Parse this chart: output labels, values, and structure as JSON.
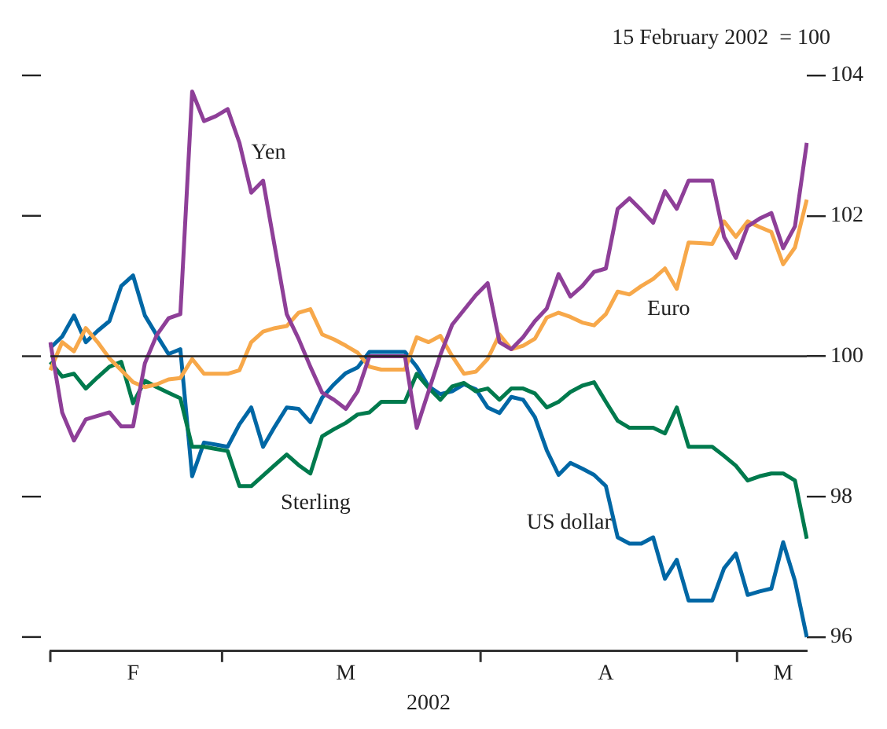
{
  "chart_data": {
    "type": "line",
    "xlabel": "2002",
    "annotations": [
      "15 February 2002  = 100"
    ],
    "categories": [
      null,
      null,
      null,
      null,
      null,
      null,
      null,
      "F",
      null,
      null,
      null,
      null,
      null,
      null,
      null,
      null,
      null,
      null,
      null,
      null,
      null,
      null,
      null,
      null,
      null,
      "M",
      null,
      null,
      null,
      null,
      null,
      null,
      null,
      null,
      null,
      null,
      null,
      null,
      null,
      null,
      null,
      null,
      null,
      null,
      null,
      null,
      null,
      "A",
      null,
      null,
      null,
      null,
      null,
      null,
      null,
      null,
      null,
      null,
      null,
      null,
      null,
      null,
      "M",
      null,
      null
    ],
    "ylim": [
      95.8,
      104
    ],
    "yticks": [
      96,
      98,
      100,
      102,
      104
    ],
    "ref_lines": [
      {
        "axis": "y",
        "value": 100,
        "color": "#222222"
      }
    ],
    "grid": false,
    "legend": false,
    "marker": "none",
    "line_style": "solid",
    "series": [
      {
        "name": "Yen",
        "color": "#8e3f98",
        "values": [
          100.2,
          99.2,
          98.8,
          99.1,
          99.15,
          99.2,
          99.0,
          99.0,
          99.9,
          100.3,
          100.54,
          100.6,
          103.77,
          103.35,
          103.42,
          103.52,
          103.04,
          102.33,
          102.5,
          101.55,
          100.6,
          100.25,
          99.85,
          99.48,
          99.38,
          99.25,
          99.5,
          100.0,
          100.0,
          100.0,
          100.0,
          98.98,
          99.5,
          100.02,
          100.45,
          100.66,
          100.87,
          101.04,
          100.2,
          100.1,
          100.27,
          100.5,
          100.68,
          101.17,
          100.85,
          101.0,
          101.2,
          101.25,
          102.1,
          102.25,
          102.08,
          101.9,
          102.35,
          102.1,
          102.5,
          102.5,
          102.5,
          101.7,
          101.4,
          101.85,
          101.96,
          102.04,
          101.54,
          101.85,
          103.04
        ]
      },
      {
        "name": "Euro",
        "color": "#f7a84a",
        "values": [
          99.8,
          100.2,
          100.07,
          100.4,
          100.2,
          99.97,
          99.8,
          99.63,
          99.56,
          99.6,
          99.67,
          99.69,
          99.96,
          99.75,
          99.75,
          99.75,
          99.8,
          100.2,
          100.35,
          100.4,
          100.43,
          100.62,
          100.67,
          100.31,
          100.24,
          100.15,
          100.05,
          99.85,
          99.81,
          99.81,
          99.81,
          100.27,
          100.2,
          100.29,
          100.0,
          99.75,
          99.78,
          99.96,
          100.31,
          100.1,
          100.15,
          100.25,
          100.55,
          100.62,
          100.56,
          100.48,
          100.44,
          100.6,
          100.92,
          100.88,
          101.0,
          101.1,
          101.25,
          100.96,
          101.62,
          101.61,
          101.6,
          101.92,
          101.7,
          101.92,
          101.84,
          101.77,
          101.31,
          101.55,
          102.23
        ]
      },
      {
        "name": "Sterling",
        "color": "#007a4d",
        "values": [
          99.92,
          99.71,
          99.75,
          99.54,
          99.7,
          99.85,
          99.92,
          99.33,
          99.65,
          99.56,
          99.48,
          99.4,
          98.71,
          98.71,
          98.68,
          98.65,
          98.15,
          98.15,
          98.3,
          98.45,
          98.6,
          98.45,
          98.33,
          98.86,
          98.96,
          99.05,
          99.17,
          99.2,
          99.35,
          99.35,
          99.35,
          99.75,
          99.55,
          99.38,
          99.57,
          99.62,
          99.5,
          99.54,
          99.38,
          99.54,
          99.54,
          99.47,
          99.27,
          99.35,
          99.49,
          99.58,
          99.63,
          99.35,
          99.08,
          98.98,
          98.98,
          98.98,
          98.9,
          99.27,
          98.71,
          98.71,
          98.71,
          98.58,
          98.44,
          98.23,
          98.29,
          98.33,
          98.33,
          98.23,
          97.4
        ]
      },
      {
        "name": "US dollar",
        "color": "#0067a5",
        "values": [
          100.12,
          100.28,
          100.58,
          100.2,
          100.36,
          100.5,
          101.0,
          101.15,
          100.58,
          100.3,
          100.03,
          100.1,
          98.29,
          98.77,
          98.74,
          98.71,
          99.03,
          99.27,
          98.71,
          99.0,
          99.27,
          99.25,
          99.06,
          99.41,
          99.6,
          99.76,
          99.84,
          100.06,
          100.06,
          100.06,
          100.06,
          99.85,
          99.57,
          99.46,
          99.5,
          99.6,
          99.53,
          99.27,
          99.19,
          99.42,
          99.38,
          99.13,
          98.66,
          98.31,
          98.48,
          98.4,
          98.31,
          98.15,
          97.42,
          97.33,
          97.33,
          97.42,
          96.83,
          97.1,
          96.52,
          96.52,
          96.52,
          96.98,
          97.19,
          96.6,
          96.65,
          96.69,
          97.35,
          96.8,
          96.0
        ]
      }
    ]
  }
}
